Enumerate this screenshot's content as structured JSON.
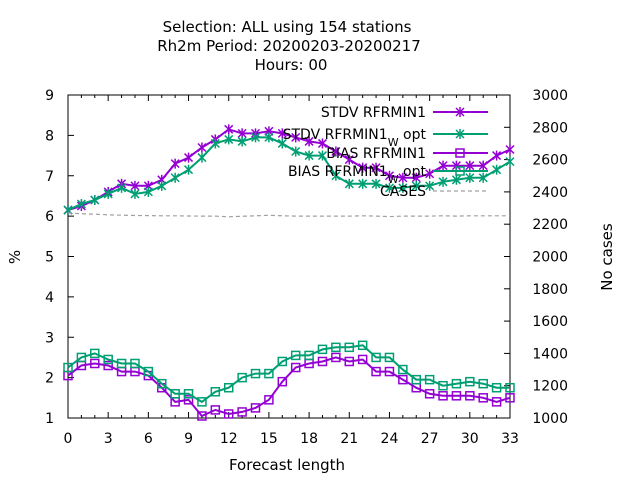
{
  "chart_data": {
    "type": "line",
    "title_lines": [
      "Selection: ALL using   154 stations",
      "Rh2m   Period: 20200203-20200217",
      "Hours:  00"
    ],
    "xlabel": "Forecast length",
    "ylabel": "%",
    "y2label": "No cases",
    "xlim": [
      0,
      33
    ],
    "ylim": [
      1,
      9
    ],
    "y2lim": [
      1000,
      3000
    ],
    "x_ticks": [
      0,
      3,
      6,
      9,
      12,
      15,
      18,
      21,
      24,
      27,
      30,
      33
    ],
    "y_ticks": [
      1,
      2,
      3,
      4,
      5,
      6,
      7,
      8,
      9
    ],
    "y2_ticks": [
      1000,
      1200,
      1400,
      1600,
      1800,
      2000,
      2200,
      2400,
      2600,
      2800,
      3000
    ],
    "legend_position": "top-right",
    "x": [
      0,
      1,
      2,
      3,
      4,
      5,
      6,
      7,
      8,
      9,
      10,
      11,
      12,
      13,
      14,
      15,
      16,
      17,
      18,
      19,
      20,
      21,
      22,
      23,
      24,
      25,
      26,
      27,
      28,
      29,
      30,
      31,
      32,
      33
    ],
    "series": [
      {
        "name": "STDV RFRMIN1",
        "color": "#9400d3",
        "marker": "star",
        "axis": "y",
        "values": [
          6.15,
          6.25,
          6.4,
          6.6,
          6.8,
          6.75,
          6.75,
          6.9,
          7.3,
          7.45,
          7.7,
          7.9,
          8.15,
          8.05,
          8.05,
          8.1,
          8.05,
          7.95,
          7.85,
          7.8,
          7.6,
          7.4,
          7.2,
          7.2,
          7.0,
          6.95,
          6.95,
          7.05,
          7.25,
          7.25,
          7.25,
          7.25,
          7.5,
          7.65
        ]
      },
      {
        "name": "STDV RFRMIN1_W_opt",
        "label_main": "STDV RFRMIN1",
        "label_sub": "W",
        "label_tail": "opt",
        "color": "#009e73",
        "marker": "star",
        "axis": "y",
        "values": [
          6.15,
          6.3,
          6.4,
          6.55,
          6.7,
          6.55,
          6.6,
          6.75,
          6.95,
          7.15,
          7.45,
          7.8,
          7.9,
          7.85,
          7.95,
          7.95,
          7.8,
          7.6,
          7.5,
          7.5,
          7.0,
          6.8,
          6.8,
          6.8,
          6.7,
          6.7,
          6.75,
          6.75,
          6.85,
          6.9,
          6.95,
          6.95,
          7.15,
          7.35
        ]
      },
      {
        "name": "BIAS RFRMIN1",
        "color": "#9400d3",
        "marker": "square",
        "axis": "y",
        "values": [
          2.05,
          2.3,
          2.35,
          2.3,
          2.15,
          2.15,
          2.05,
          1.75,
          1.4,
          1.45,
          1.05,
          1.2,
          1.1,
          1.15,
          1.25,
          1.45,
          1.9,
          2.25,
          2.35,
          2.4,
          2.5,
          2.4,
          2.45,
          2.15,
          2.15,
          1.95,
          1.75,
          1.6,
          1.55,
          1.55,
          1.55,
          1.5,
          1.4,
          1.5
        ]
      },
      {
        "name": "BIAS RFRMIN1_W_opt",
        "label_main": "BIAS RFRMIN1",
        "label_sub": "W",
        "label_tail": "opt",
        "color": "#009e73",
        "marker": "square",
        "axis": "y",
        "values": [
          2.25,
          2.5,
          2.6,
          2.45,
          2.35,
          2.35,
          2.15,
          1.85,
          1.6,
          1.6,
          1.4,
          1.65,
          1.75,
          2.0,
          2.1,
          2.1,
          2.4,
          2.55,
          2.55,
          2.7,
          2.75,
          2.75,
          2.8,
          2.5,
          2.5,
          2.2,
          1.95,
          1.95,
          1.8,
          1.85,
          1.9,
          1.85,
          1.75,
          1.75
        ]
      },
      {
        "name": "CASES",
        "color": "#a0a0a0",
        "dash": true,
        "axis": "y2",
        "values": [
          2270,
          2265,
          2262,
          2258,
          2256,
          2254,
          2253,
          2252,
          2252,
          2251,
          2250,
          2250,
          2246,
          2249,
          2252,
          2255,
          2252,
          2250,
          2250,
          2250,
          2250,
          2250,
          2252,
          2250,
          2247,
          2250,
          2250,
          2250,
          2252,
          2250,
          2252,
          2252,
          2252,
          2252
        ]
      }
    ]
  }
}
